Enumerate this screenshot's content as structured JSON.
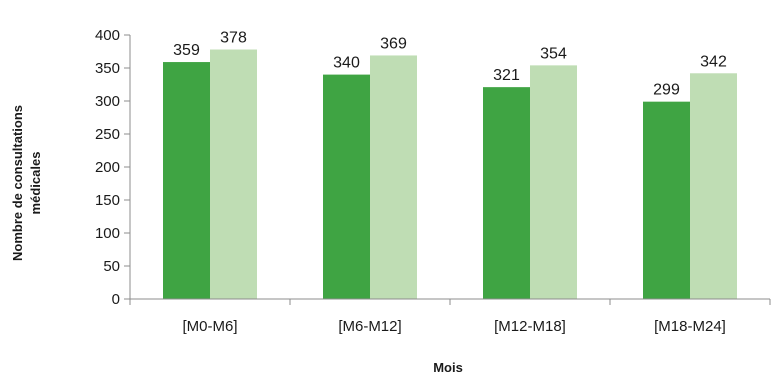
{
  "chart_data": {
    "type": "bar",
    "categories": [
      "[M0-M6]",
      "[M6-M12]",
      "[M12-M18]",
      "[M18-M24]"
    ],
    "series": [
      {
        "values": [
          359,
          340,
          321,
          299
        ],
        "color": "#3fa443"
      },
      {
        "values": [
          378,
          369,
          354,
          342
        ],
        "color": "#bfddb4"
      }
    ],
    "xlabel": "Mois",
    "ylabel_lines": [
      "Nombre de consultations",
      "médicales"
    ],
    "ylim": [
      0,
      400
    ],
    "yticks": [
      0,
      50,
      100,
      150,
      200,
      250,
      300,
      350,
      400
    ],
    "grid": false,
    "legend": "none"
  }
}
